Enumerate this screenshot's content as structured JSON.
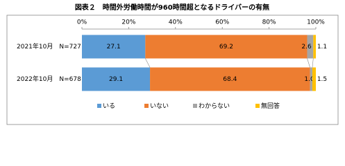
{
  "chart_data": {
    "type": "stacked-bar-horizontal",
    "title": "図表２　時間外労働時間が960時間超となるドライバーの有無",
    "categories": [
      "2021年10月　N=727",
      "2022年10月　N=678"
    ],
    "series": [
      {
        "name": "いる",
        "color": "#5b9bd5",
        "values": [
          27.1,
          29.1
        ]
      },
      {
        "name": "いない",
        "color": "#ed7d31",
        "values": [
          69.2,
          68.4
        ]
      },
      {
        "name": "わからない",
        "color": "#a5a5a5",
        "values": [
          2.6,
          1
        ],
        "value_labels": [
          "2.6",
          "1.0"
        ]
      },
      {
        "name": "無回答",
        "color": "#ffc000",
        "values": [
          1.1,
          1.5
        ]
      }
    ],
    "xlim": [
      0,
      100
    ],
    "xticks": [
      {
        "value": 0,
        "label": "0%"
      },
      {
        "value": 20,
        "label": "20%"
      },
      {
        "value": 40,
        "label": "40%"
      },
      {
        "value": 60,
        "label": "60%"
      },
      {
        "value": 80,
        "label": "80%"
      },
      {
        "value": 100,
        "label": "100%"
      }
    ],
    "legend": "bottom"
  }
}
